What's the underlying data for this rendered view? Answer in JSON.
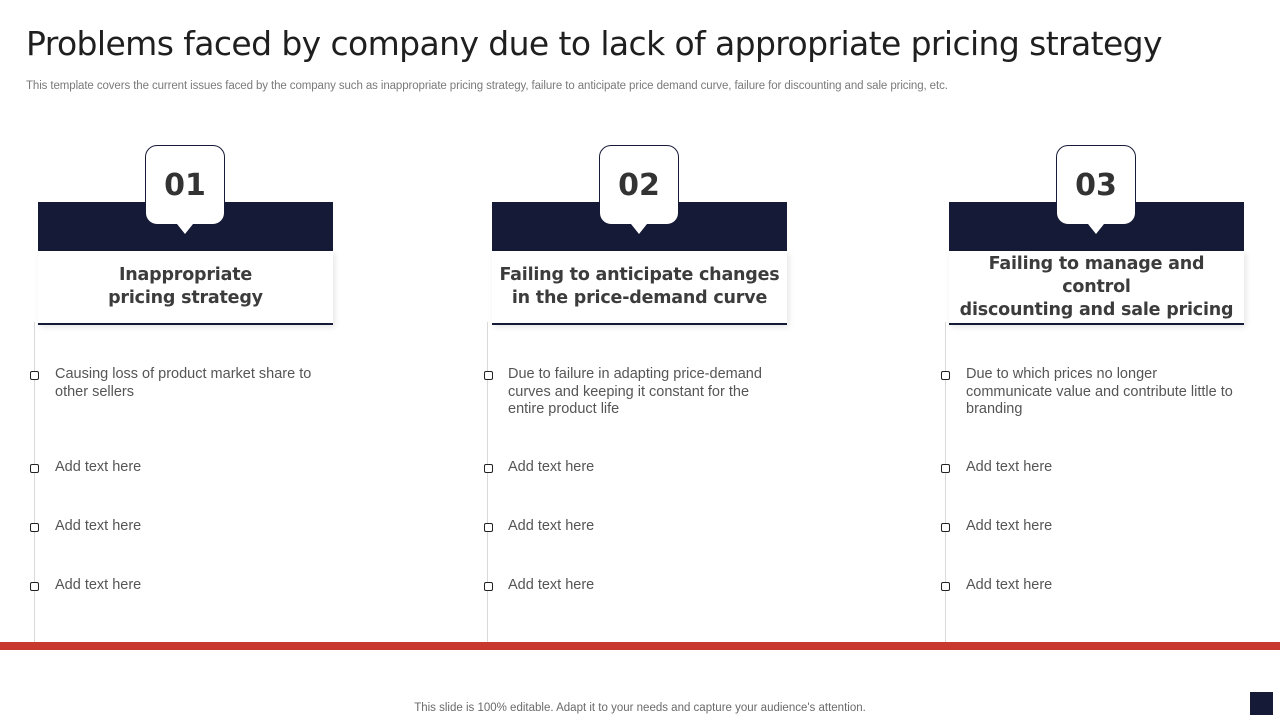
{
  "slide": {
    "title": "Problems faced by company due to lack of appropriate pricing strategy",
    "subtitle": "This template covers the current issues faced by the company such as inappropriate pricing strategy, failure to anticipate price demand curve, failure for discounting and sale pricing, etc.",
    "footer": "This slide is 100% editable. Adapt it to your needs and capture your audience's attention."
  },
  "columns": [
    {
      "number": "01",
      "heading_line1": "Inappropriate",
      "heading_line2": "pricing strategy",
      "items": [
        "Causing loss of product market share to other sellers",
        "Add text here",
        "Add text here",
        "Add text here"
      ]
    },
    {
      "number": "02",
      "heading_line1": "Failing to anticipate changes",
      "heading_line2": "in the price-demand curve",
      "items": [
        "Due to failure in adapting price-demand curves  and keeping it constant for the entire product life",
        "Add text here",
        "Add text here",
        "Add text here"
      ]
    },
    {
      "number": "03",
      "heading_line1": "Failing to manage and control",
      "heading_line2": "discounting and sale pricing",
      "items": [
        "Due to which prices no longer communicate value and contribute little to branding",
        "Add text here",
        "Add text here",
        "Add text here"
      ]
    }
  ],
  "colors": {
    "navy": "#151a36",
    "accent_red": "#c9382f"
  }
}
